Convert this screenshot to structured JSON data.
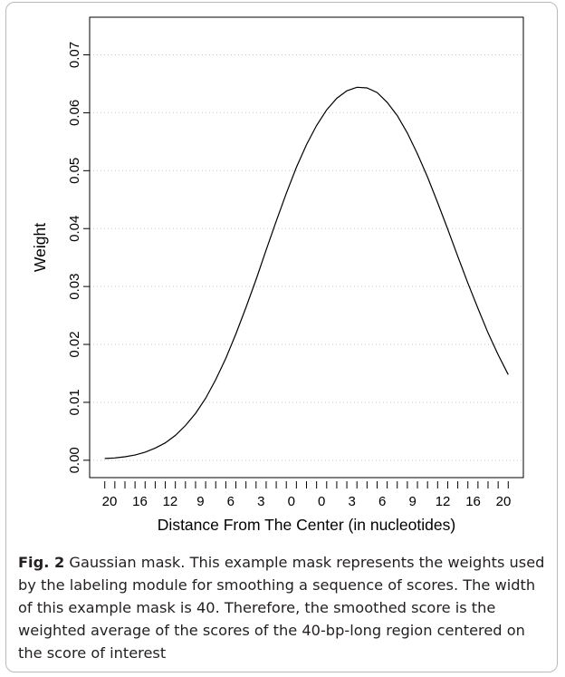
{
  "chart_data": {
    "type": "line",
    "title": "",
    "xlabel": "Distance From The Center (in nucleotides)",
    "ylabel": "Weight",
    "x_tick_labels": [
      "20",
      "16",
      "12",
      "9",
      "6",
      "3",
      "0",
      "0",
      "3",
      "6",
      "9",
      "12",
      "16",
      "20"
    ],
    "y_ticks": [
      0.0,
      0.01,
      0.02,
      0.03,
      0.04,
      0.05,
      0.06,
      0.07
    ],
    "y_tick_labels": [
      "0.00",
      "0.01",
      "0.02",
      "0.03",
      "0.04",
      "0.05",
      "0.06",
      "0.07"
    ],
    "ylim": [
      -0.003,
      0.0765
    ],
    "xlim": [
      -21.5,
      21.5
    ],
    "grid": "horizontal dotted",
    "series": [
      {
        "x": [
          -20,
          -19,
          -18,
          -17,
          -16,
          -15,
          -14,
          -13,
          -12,
          -11,
          -10,
          -9,
          -8,
          -7,
          -6,
          -5,
          -4,
          -3,
          -2,
          -1,
          0,
          1,
          2,
          3,
          4,
          5,
          6,
          7,
          8,
          9,
          10,
          11,
          12,
          13,
          14,
          15,
          16,
          17,
          18,
          19,
          20
        ],
        "values": [
          0.0003,
          0.0004,
          0.0006,
          0.0009,
          0.0014,
          0.0021,
          0.003,
          0.0043,
          0.006,
          0.0081,
          0.0107,
          0.0139,
          0.0176,
          0.0218,
          0.0264,
          0.0312,
          0.0363,
          0.0413,
          0.0461,
          0.0506,
          0.0545,
          0.0578,
          0.0605,
          0.0625,
          0.0638,
          0.0644,
          0.0643,
          0.0635,
          0.0618,
          0.0595,
          0.0565,
          0.0529,
          0.0489,
          0.0445,
          0.0399,
          0.0352,
          0.0306,
          0.0262,
          0.022,
          0.0182,
          0.0148
        ]
      }
    ]
  },
  "caption": {
    "label": "Fig. 2",
    "text": " Gaussian mask. This example mask represents the weights used by the labeling module for smoothing a sequence of scores. The width of this example mask is 40. Therefore, the smoothed score is the weighted average of the scores of the 40-bp-long region centered on the score of interest"
  }
}
